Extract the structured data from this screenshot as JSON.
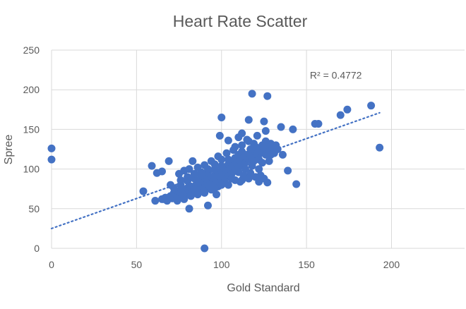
{
  "chart_data": {
    "type": "scatter",
    "title": "Heart Rate Scatter",
    "xlabel": "Gold Standard",
    "ylabel": "Spree",
    "xlim": [
      0,
      243
    ],
    "ylim": [
      0,
      250
    ],
    "xticks": [
      0,
      50,
      100,
      150,
      200
    ],
    "yticks": [
      0,
      50,
      100,
      150,
      200,
      250
    ],
    "grid": true,
    "legend": "none",
    "colors": {
      "points": "#4472C4",
      "trendline": "#4472C4",
      "grid": "#D9D9D9",
      "text": "#595959"
    },
    "trendline": {
      "type": "linear",
      "slope": 0.756,
      "intercept": 25,
      "style": "dotted",
      "label": "R² = 0.4772"
    },
    "points": [
      [
        0,
        126
      ],
      [
        0,
        112
      ],
      [
        54,
        72
      ],
      [
        59,
        104
      ],
      [
        61,
        60
      ],
      [
        62,
        95
      ],
      [
        65,
        97
      ],
      [
        66,
        62
      ],
      [
        69,
        110
      ],
      [
        81,
        50
      ],
      [
        90,
        0
      ],
      [
        92,
        54
      ],
      [
        83,
        110
      ],
      [
        100,
        165
      ],
      [
        99,
        142
      ],
      [
        116,
        162
      ],
      [
        118,
        195
      ],
      [
        127,
        192
      ],
      [
        125,
        160
      ],
      [
        135,
        153
      ],
      [
        142,
        150
      ],
      [
        155,
        157
      ],
      [
        157,
        157
      ],
      [
        170,
        168
      ],
      [
        174,
        175
      ],
      [
        188,
        180
      ],
      [
        193,
        127
      ],
      [
        139,
        98
      ],
      [
        144,
        81
      ],
      [
        136,
        118
      ],
      [
        111,
        84
      ],
      [
        97,
        68
      ],
      [
        65,
        62
      ],
      [
        67,
        64
      ],
      [
        68,
        60
      ],
      [
        70,
        66
      ],
      [
        71,
        63
      ],
      [
        72,
        70
      ],
      [
        73,
        68
      ],
      [
        74,
        65
      ],
      [
        75,
        72
      ],
      [
        76,
        70
      ],
      [
        77,
        67
      ],
      [
        78,
        74
      ],
      [
        79,
        72
      ],
      [
        80,
        69
      ],
      [
        80,
        76
      ],
      [
        81,
        73
      ],
      [
        82,
        78
      ],
      [
        83,
        71
      ],
      [
        84,
        75
      ],
      [
        85,
        80
      ],
      [
        85,
        72
      ],
      [
        86,
        77
      ],
      [
        87,
        82
      ],
      [
        88,
        74
      ],
      [
        88,
        86
      ],
      [
        89,
        79
      ],
      [
        90,
        84
      ],
      [
        90,
        76
      ],
      [
        91,
        88
      ],
      [
        92,
        81
      ],
      [
        93,
        86
      ],
      [
        93,
        78
      ],
      [
        94,
        90
      ],
      [
        95,
        84
      ],
      [
        96,
        92
      ],
      [
        96,
        80
      ],
      [
        97,
        87
      ],
      [
        98,
        95
      ],
      [
        98,
        83
      ],
      [
        99,
        90
      ],
      [
        100,
        98
      ],
      [
        100,
        86
      ],
      [
        101,
        93
      ],
      [
        102,
        102
      ],
      [
        102,
        88
      ],
      [
        103,
        96
      ],
      [
        104,
        106
      ],
      [
        104,
        91
      ],
      [
        105,
        100
      ],
      [
        106,
        110
      ],
      [
        106,
        94
      ],
      [
        107,
        104
      ],
      [
        108,
        98
      ],
      [
        108,
        114
      ],
      [
        109,
        107
      ],
      [
        110,
        102
      ],
      [
        110,
        118
      ],
      [
        111,
        110
      ],
      [
        112,
        105
      ],
      [
        112,
        122
      ],
      [
        113,
        114
      ],
      [
        114,
        108
      ],
      [
        115,
        118
      ],
      [
        116,
        112
      ],
      [
        117,
        125
      ],
      [
        118,
        116
      ],
      [
        119,
        110
      ],
      [
        120,
        122
      ],
      [
        120,
        128
      ],
      [
        121,
        118
      ],
      [
        122,
        126
      ],
      [
        123,
        120
      ],
      [
        124,
        130
      ],
      [
        125,
        124
      ],
      [
        126,
        118
      ],
      [
        127,
        128
      ],
      [
        128,
        122
      ],
      [
        129,
        132
      ],
      [
        130,
        126
      ],
      [
        131,
        120
      ],
      [
        132,
        130
      ],
      [
        126,
        135
      ],
      [
        122,
        112
      ],
      [
        118,
        104
      ],
      [
        114,
        100
      ],
      [
        110,
        96
      ],
      [
        106,
        88
      ],
      [
        102,
        84
      ],
      [
        98,
        78
      ],
      [
        94,
        74
      ],
      [
        90,
        70
      ],
      [
        86,
        68
      ],
      [
        82,
        66
      ],
      [
        78,
        62
      ],
      [
        74,
        60
      ],
      [
        76,
        80
      ],
      [
        80,
        85
      ],
      [
        84,
        88
      ],
      [
        88,
        92
      ],
      [
        92,
        96
      ],
      [
        96,
        100
      ],
      [
        100,
        104
      ],
      [
        104,
        112
      ],
      [
        100,
        112
      ],
      [
        96,
        106
      ],
      [
        92,
        100
      ],
      [
        88,
        96
      ],
      [
        84,
        94
      ],
      [
        80,
        90
      ],
      [
        76,
        86
      ],
      [
        72,
        76
      ],
      [
        70,
        80
      ],
      [
        75,
        94
      ],
      [
        78,
        98
      ],
      [
        81,
        100
      ],
      [
        86,
        102
      ],
      [
        90,
        105
      ],
      [
        94,
        110
      ],
      [
        98,
        116
      ],
      [
        103,
        120
      ],
      [
        107,
        124
      ],
      [
        112,
        130
      ],
      [
        116,
        135
      ],
      [
        121,
        142
      ],
      [
        126,
        148
      ],
      [
        119,
        132
      ],
      [
        124,
        108
      ],
      [
        129,
        118
      ],
      [
        133,
        125
      ],
      [
        128,
        110
      ],
      [
        122,
        100
      ],
      [
        117,
        95
      ],
      [
        113,
        92
      ],
      [
        108,
        86
      ],
      [
        100,
        80
      ],
      [
        96,
        76
      ],
      [
        104,
        80
      ],
      [
        112,
        86
      ],
      [
        116,
        88
      ],
      [
        120,
        90
      ],
      [
        122,
        84
      ],
      [
        125,
        88
      ],
      [
        127,
        83
      ],
      [
        123,
        92
      ],
      [
        108,
        128
      ],
      [
        104,
        136
      ],
      [
        110,
        140
      ],
      [
        112,
        145
      ],
      [
        115,
        137
      ]
    ]
  }
}
